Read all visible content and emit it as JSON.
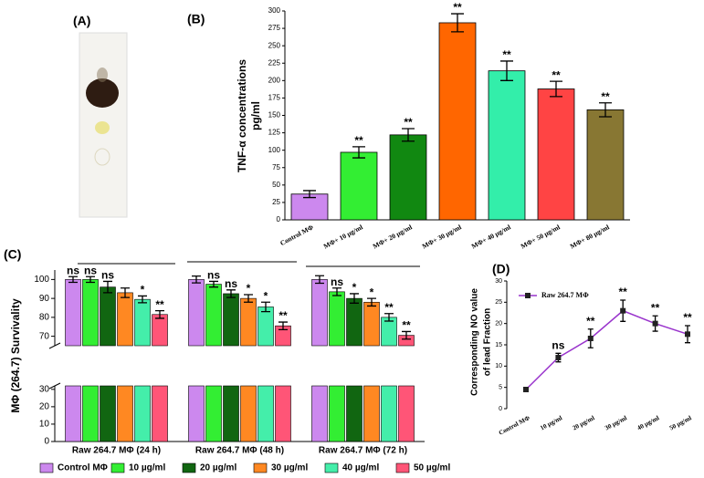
{
  "panel_a": {
    "label": "(A)"
  },
  "chart_data": [
    {
      "type": "bar",
      "label": "(B)",
      "ylabel": [
        "TNF-α concentrations",
        "pg/ml"
      ],
      "categories": [
        "Control MΦ",
        "MΦ+ 10 µg/ml",
        "MΦ+ 20 µg/ml",
        "MΦ+ 30 µg/ml",
        "MΦ+ 40 µg/ml",
        "MΦ+ 50 µg/ml",
        "MΦ+ 80 µg/ml"
      ],
      "values": [
        37,
        97,
        122,
        283,
        214,
        188,
        158
      ],
      "errors": [
        5,
        8,
        9,
        13,
        14,
        11,
        10
      ],
      "value_labels": [
        null,
        "**",
        "**",
        "**",
        "**",
        "**",
        "**"
      ],
      "colors": [
        "#cc88ee",
        "#33ee33",
        "#118811",
        "#ff6600",
        "#33eeaa",
        "#ff4444",
        "#887733"
      ],
      "ylim": [
        0,
        300
      ],
      "yticks": [
        0,
        25,
        50,
        75,
        100,
        125,
        150,
        175,
        200,
        225,
        250,
        275,
        300
      ]
    },
    {
      "type": "bar",
      "label": "(C)",
      "ylabel": "MΦ (264.7) Survivality",
      "categories": [
        "Raw 264.7 MΦ (24 h)",
        "Raw 264.7 MΦ (48 h)",
        "Raw 264.7 MΦ (72 h)"
      ],
      "series": [
        {
          "name": "Control MΦ",
          "color": "#cc88ee",
          "values": [
            100,
            100,
            100
          ],
          "errors": [
            1.5,
            1.8,
            2
          ],
          "value_labels": [
            "ns",
            null,
            null
          ]
        },
        {
          "name": "10 µg/ml",
          "color": "#33ee33",
          "values": [
            100,
            97.5,
            93.5
          ],
          "errors": [
            1.5,
            1.5,
            2
          ],
          "value_labels": [
            "ns",
            "ns",
            "ns"
          ]
        },
        {
          "name": "20 µg/ml",
          "color": "#116611",
          "values": [
            96,
            92.5,
            90
          ],
          "errors": [
            3,
            2,
            2.5
          ],
          "value_labels": [
            "ns",
            "ns",
            "*"
          ]
        },
        {
          "name": "30 µg/ml",
          "color": "#ff8822",
          "values": [
            93,
            90,
            88
          ],
          "errors": [
            2.5,
            2,
            2
          ],
          "value_labels": [
            null,
            "*",
            "*"
          ]
        },
        {
          "name": "40 µg/ml",
          "color": "#44eeaa",
          "values": [
            89.5,
            85.5,
            80
          ],
          "errors": [
            1.8,
            2.5,
            2
          ],
          "value_labels": [
            "*",
            "*",
            "**"
          ]
        },
        {
          "name": "50 µg/ml",
          "color": "#ff5577",
          "values": [
            81.5,
            75.5,
            70.5
          ],
          "errors": [
            2,
            2,
            2
          ],
          "value_labels": [
            "**",
            "**",
            "**"
          ]
        }
      ],
      "ylim_upper": [
        65,
        105
      ],
      "yticks_upper": [
        70,
        80,
        90,
        100
      ],
      "ylim_lower": [
        0,
        32
      ],
      "yticks_lower": [
        0,
        10,
        20,
        30
      ]
    },
    {
      "type": "line",
      "label": "(D)",
      "ylabel": [
        "Corresponding NO value",
        "of lead Fraction"
      ],
      "categories": [
        "Control MΦ",
        "10 µg/ml",
        "20 µg/ml",
        "30 µg/ml",
        "40 µg/ml",
        "50 µg/ml"
      ],
      "series": [
        {
          "name": "Raw 264.7 MΦ",
          "color": "#9933cc",
          "values": [
            4.5,
            12,
            16.5,
            23,
            20,
            17.5
          ],
          "errors": [
            0.5,
            1,
            2.2,
            2.5,
            1.8,
            2
          ],
          "value_labels": [
            null,
            "ns",
            "**",
            "**",
            "**",
            "**"
          ]
        }
      ],
      "ylim": [
        0,
        30
      ],
      "yticks": [
        0,
        5,
        10,
        15,
        20,
        25,
        30
      ]
    }
  ]
}
